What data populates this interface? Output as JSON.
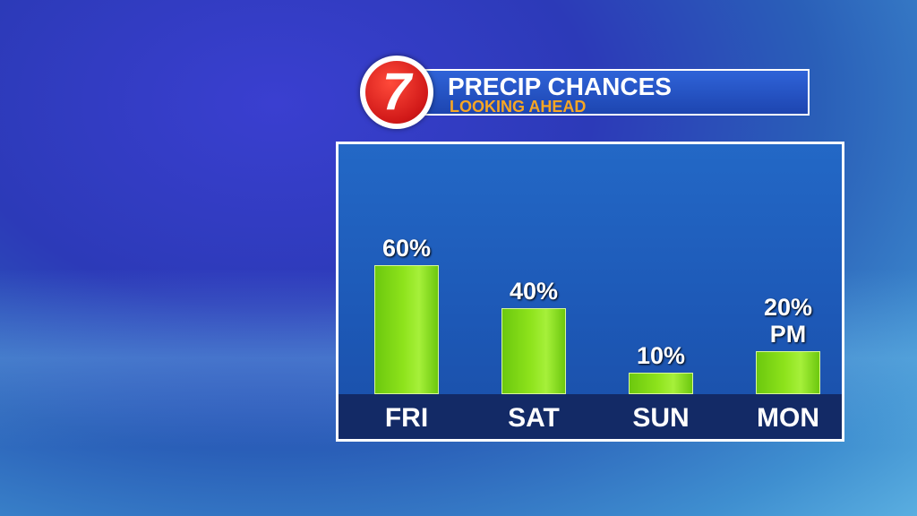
{
  "logo": "7",
  "chart_data": {
    "type": "bar",
    "title": "PRECIP CHANCES",
    "subtitle": "LOOKING AHEAD",
    "categories": [
      "FRI",
      "SAT",
      "SUN",
      "MON"
    ],
    "values": [
      60,
      40,
      10,
      20
    ],
    "value_labels": [
      "60%",
      "40%",
      "10%",
      "20% PM"
    ],
    "color": "#8ee31c"
  }
}
